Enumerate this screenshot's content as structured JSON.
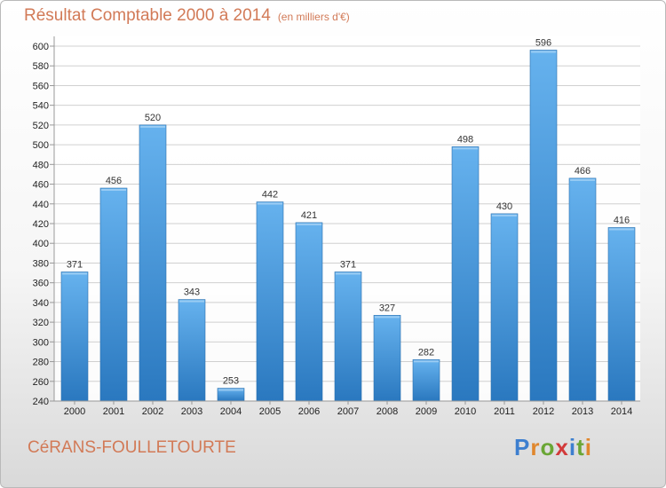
{
  "chart_data": {
    "type": "bar",
    "title": "Résultat Comptable 2000 à 2014",
    "subtitle": "(en milliers d'€)",
    "categories": [
      "2000",
      "2001",
      "2002",
      "2003",
      "2004",
      "2005",
      "2006",
      "2007",
      "2008",
      "2009",
      "2010",
      "2011",
      "2012",
      "2013",
      "2014"
    ],
    "values": [
      371,
      456,
      520,
      343,
      253,
      442,
      421,
      371,
      327,
      282,
      498,
      430,
      596,
      466,
      416
    ],
    "ylim": [
      240,
      600
    ],
    "yticks": [
      240,
      260,
      280,
      300,
      320,
      340,
      360,
      380,
      400,
      420,
      440,
      460,
      480,
      500,
      520,
      540,
      560,
      580,
      600
    ],
    "xlabel": "",
    "ylabel": "",
    "grid": true
  },
  "footer": {
    "commune": "CéRANS-FOULLETOURTE",
    "logo_letters": [
      "P",
      "r",
      "o",
      "x",
      "i",
      "t",
      "i"
    ],
    "logo_colors": [
      "#3d7fcf",
      "#e0872d",
      "#6aa635",
      "#d23a3a",
      "#3d7fcf",
      "#6aa635",
      "#e0872d"
    ]
  },
  "colors": {
    "title": "#d27a57",
    "bar_top": "#66b2ee",
    "bar_bottom": "#2a78bf",
    "grid": "#d0d0d0"
  }
}
